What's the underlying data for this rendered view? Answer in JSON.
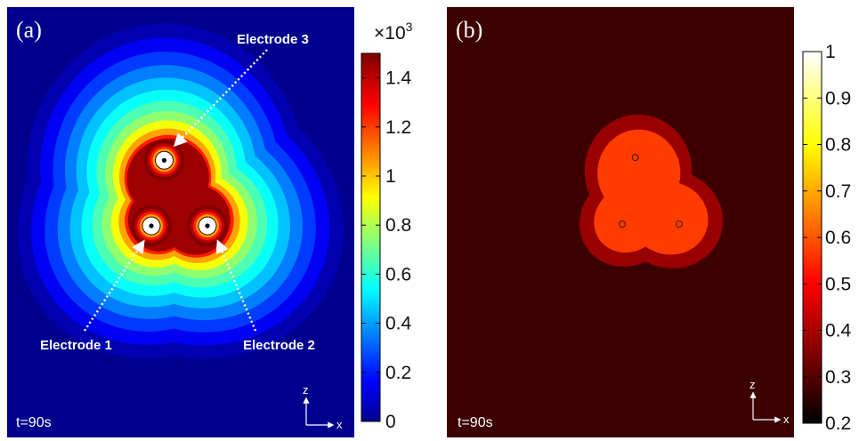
{
  "chart_data": [
    {
      "type": "heatmap",
      "panel_label": "(a)",
      "time_label": "t=90s",
      "colormap": "jet",
      "colorbar": {
        "exponent_label": "×10",
        "exponent_sup": "3",
        "range": [
          0,
          1.5
        ],
        "ticks": [
          0,
          0.2,
          0.4,
          0.6,
          0.8,
          1,
          1.2,
          1.4
        ]
      },
      "electrodes": [
        {
          "label": "Electrode 1",
          "x": 0,
          "z": 0
        },
        {
          "label": "Electrode 2",
          "x": 1,
          "z": 0
        },
        {
          "label": "Electrode 3",
          "x": 0.23,
          "z": 1.17
        }
      ],
      "contour_levels": [
        0.05,
        0.15,
        0.25,
        0.35,
        0.45,
        0.55,
        0.65,
        0.75,
        0.9,
        1.05,
        1.25,
        1.45
      ],
      "background_value": 0,
      "axis_indicator": {
        "vertical": "z",
        "horizontal": "x"
      }
    },
    {
      "type": "heatmap",
      "panel_label": "(b)",
      "time_label": "t=90s",
      "colormap": "hot",
      "colorbar": {
        "range": [
          0.2,
          1
        ],
        "ticks": [
          0.2,
          0.3,
          0.4,
          0.5,
          0.6,
          0.7,
          0.8,
          0.9,
          1
        ]
      },
      "regions": [
        {
          "level": "outer",
          "value": 0.38
        },
        {
          "level": "inner",
          "value": 0.57
        }
      ],
      "background_value": 0.27,
      "axis_indicator": {
        "vertical": "z",
        "horizontal": "x"
      }
    }
  ]
}
